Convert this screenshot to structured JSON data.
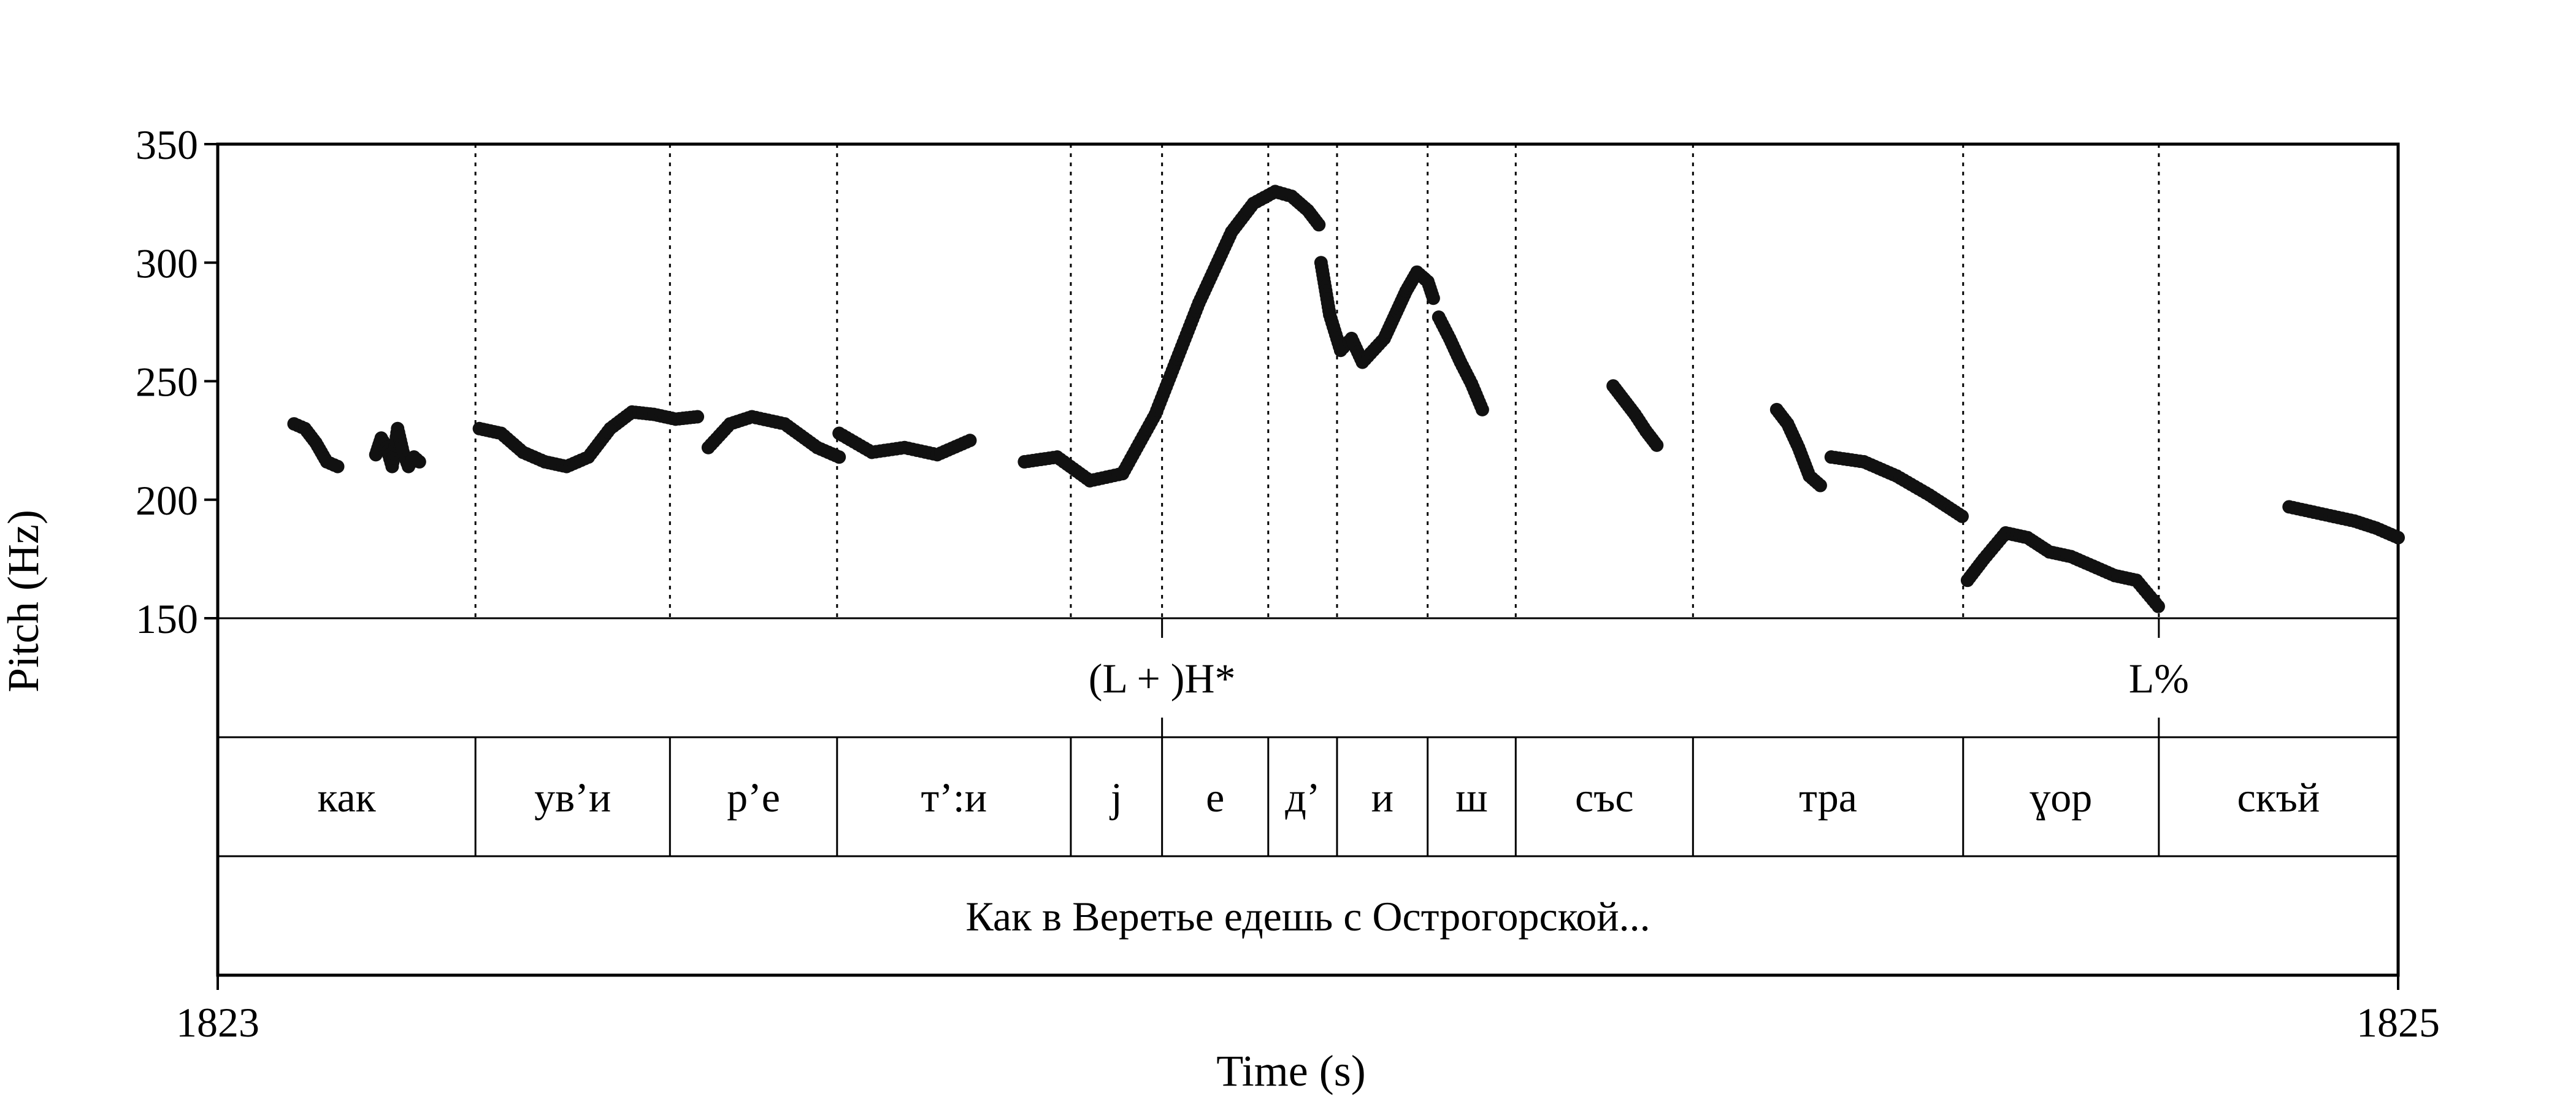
{
  "chart_data": {
    "type": "scatter",
    "title": "",
    "xlabel": "Time (s)",
    "ylabel": "Pitch (Hz)",
    "xlim": [
      1823,
      1825
    ],
    "ylim": [
      150,
      350
    ],
    "x_tick_labels": [
      "1823",
      "1825"
    ],
    "y_tick_labels": [
      "150",
      "200",
      "250",
      "300",
      "350"
    ],
    "y_ticks": [
      150,
      200,
      250,
      300,
      350
    ],
    "point_color": "#111111",
    "boundary_times": [
      1823.2364,
      1823.4148,
      1823.5681,
      1823.7825,
      1823.8662,
      1823.9636,
      1824.0267,
      1824.1098,
      1824.1906,
      1824.3532,
      1824.601,
      1824.7805
    ],
    "tone_tier": {
      "labels": [
        "(L + )H*",
        "L%"
      ],
      "times": [
        1823.8662,
        1824.7805
      ]
    },
    "syllable_tier": {
      "labels": [
        "как",
        "ув’и",
        "р’е",
        "т’:и",
        "j",
        "е",
        "д’",
        "и",
        "ш",
        "със",
        "тра",
        "ɣор",
        "скъй"
      ],
      "bounds": [
        1823.0,
        1823.2364,
        1823.4148,
        1823.5681,
        1823.7825,
        1823.8662,
        1823.9636,
        1824.0267,
        1824.1098,
        1824.1906,
        1824.3532,
        1824.601,
        1824.7805,
        1825.0
      ]
    },
    "phrase_tier": {
      "label": "Как в Веретье едешь с Острогорской..."
    },
    "pitch_segments": [
      {
        "t": [
          1823.07,
          1823.08,
          1823.09,
          1823.1,
          1823.11
        ],
        "f0": [
          232,
          230,
          224,
          216,
          214
        ]
      },
      {
        "t": [
          1823.145,
          1823.15,
          1823.155,
          1823.16,
          1823.165,
          1823.17,
          1823.175,
          1823.18,
          1823.185
        ],
        "f0": [
          219,
          226,
          222,
          214,
          230,
          220,
          214,
          218,
          216
        ]
      },
      {
        "t": [
          1823.24,
          1823.26,
          1823.28,
          1823.3,
          1823.32,
          1823.34,
          1823.36,
          1823.38,
          1823.4,
          1823.42,
          1823.44
        ],
        "f0": [
          230,
          228,
          220,
          216,
          214,
          218,
          230,
          237,
          236,
          234,
          235
        ]
      },
      {
        "t": [
          1823.45,
          1823.47,
          1823.49,
          1823.52,
          1823.55,
          1823.57
        ],
        "f0": [
          222,
          232,
          235,
          232,
          222,
          218
        ]
      },
      {
        "t": [
          1823.57,
          1823.6,
          1823.63,
          1823.66,
          1823.69
        ],
        "f0": [
          228,
          220,
          222,
          219,
          225
        ]
      },
      {
        "t": [
          1823.74,
          1823.77,
          1823.8,
          1823.83,
          1823.86,
          1823.9,
          1823.93,
          1823.95,
          1823.97,
          1823.985,
          1824.0,
          1824.01
        ],
        "f0": [
          216,
          218,
          208,
          211,
          236,
          283,
          313,
          325,
          330,
          328,
          322,
          316
        ]
      },
      {
        "t": [
          1824.012,
          1824.02,
          1824.03,
          1824.04,
          1824.05,
          1824.06,
          1824.07,
          1824.08,
          1824.09,
          1824.1,
          1824.11,
          1824.115
        ],
        "f0": [
          300,
          278,
          263,
          268,
          258,
          263,
          268,
          278,
          288,
          296,
          292,
          285
        ]
      },
      {
        "t": [
          1824.12,
          1824.13,
          1824.14,
          1824.15,
          1824.16
        ],
        "f0": [
          277,
          268,
          258,
          249,
          238
        ]
      },
      {
        "t": [
          1824.28,
          1824.29,
          1824.3,
          1824.31,
          1824.32
        ],
        "f0": [
          248,
          242,
          236,
          229,
          223
        ]
      },
      {
        "t": [
          1824.43,
          1824.44,
          1824.45,
          1824.46,
          1824.47
        ],
        "f0": [
          238,
          232,
          222,
          210,
          206
        ]
      },
      {
        "t": [
          1824.48,
          1824.51,
          1824.54,
          1824.57,
          1824.6
        ],
        "f0": [
          218,
          216,
          210,
          202,
          193
        ]
      },
      {
        "t": [
          1824.605,
          1824.62,
          1824.64,
          1824.66,
          1824.68,
          1824.7,
          1824.72,
          1824.74,
          1824.76,
          1824.78
        ],
        "f0": [
          166,
          175,
          186,
          184,
          178,
          176,
          172,
          168,
          166,
          155
        ]
      },
      {
        "t": [
          1824.9,
          1824.93,
          1824.96,
          1824.98,
          1825.0
        ],
        "f0": [
          197,
          194,
          191,
          188,
          184
        ]
      }
    ]
  }
}
